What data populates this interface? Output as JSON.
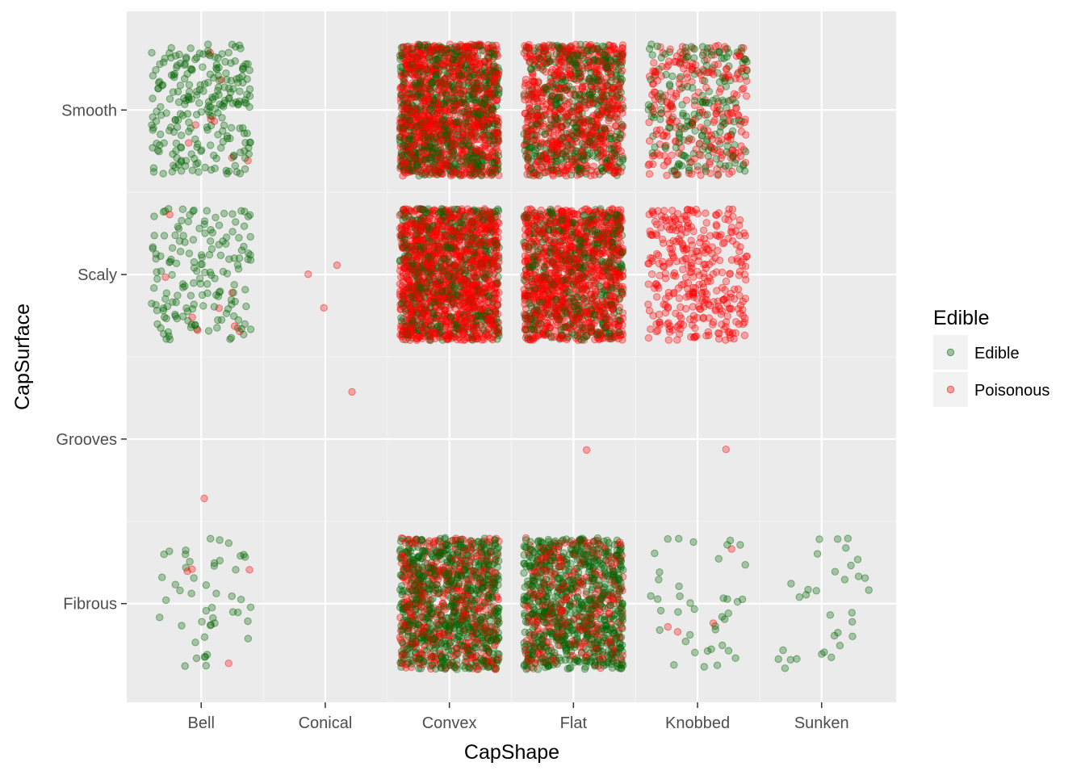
{
  "chart_data": {
    "type": "scatter",
    "subtype": "jitter",
    "xlabel": "CapShape",
    "ylabel": "CapSurface",
    "x_categories": [
      "Bell",
      "Conical",
      "Convex",
      "Flat",
      "Knobbed",
      "Sunken"
    ],
    "y_categories": [
      "Fibrous",
      "Grooves",
      "Scaly",
      "Smooth"
    ],
    "grid": true,
    "legend": {
      "title": "Edible",
      "position": "right",
      "entries": [
        {
          "label": "Edible",
          "color": "#006400"
        },
        {
          "label": "Poisonous",
          "color": "#ff0000"
        }
      ]
    },
    "series": [
      {
        "name": "Edible",
        "color": "#006400",
        "counts": [
          {
            "x": "Bell",
            "y": "Fibrous",
            "n": 48
          },
          {
            "x": "Bell",
            "y": "Scaly",
            "n": 160
          },
          {
            "x": "Bell",
            "y": "Smooth",
            "n": 240
          },
          {
            "x": "Convex",
            "y": "Fibrous",
            "n": 760
          },
          {
            "x": "Convex",
            "y": "Scaly",
            "n": 496
          },
          {
            "x": "Convex",
            "y": "Smooth",
            "n": 692
          },
          {
            "x": "Flat",
            "y": "Fibrous",
            "n": 744
          },
          {
            "x": "Flat",
            "y": "Scaly",
            "n": 424
          },
          {
            "x": "Flat",
            "y": "Smooth",
            "n": 428
          },
          {
            "x": "Knobbed",
            "y": "Fibrous",
            "n": 40
          },
          {
            "x": "Knobbed",
            "y": "Smooth",
            "n": 188
          },
          {
            "x": "Sunken",
            "y": "Fibrous",
            "n": 32
          }
        ]
      },
      {
        "name": "Poisonous",
        "color": "#ff0000",
        "counts": [
          {
            "x": "Bell",
            "y": "Fibrous",
            "n": 4
          },
          {
            "x": "Bell",
            "y": "Grooves",
            "n": 1
          },
          {
            "x": "Bell",
            "y": "Scaly",
            "n": 8
          },
          {
            "x": "Bell",
            "y": "Smooth",
            "n": 8
          },
          {
            "x": "Conical",
            "y": "Grooves",
            "n": 1
          },
          {
            "x": "Conical",
            "y": "Scaly",
            "n": 3
          },
          {
            "x": "Convex",
            "y": "Fibrous",
            "n": 456
          },
          {
            "x": "Convex",
            "y": "Scaly",
            "n": 1236
          },
          {
            "x": "Convex",
            "y": "Smooth",
            "n": 1012
          },
          {
            "x": "Flat",
            "y": "Fibrous",
            "n": 320
          },
          {
            "x": "Flat",
            "y": "Grooves",
            "n": 1
          },
          {
            "x": "Flat",
            "y": "Scaly",
            "n": 1016
          },
          {
            "x": "Flat",
            "y": "Smooth",
            "n": 700
          },
          {
            "x": "Knobbed",
            "y": "Fibrous",
            "n": 4
          },
          {
            "x": "Knobbed",
            "y": "Grooves",
            "n": 1
          },
          {
            "x": "Knobbed",
            "y": "Scaly",
            "n": 348
          },
          {
            "x": "Knobbed",
            "y": "Smooth",
            "n": 244
          }
        ]
      }
    ]
  }
}
